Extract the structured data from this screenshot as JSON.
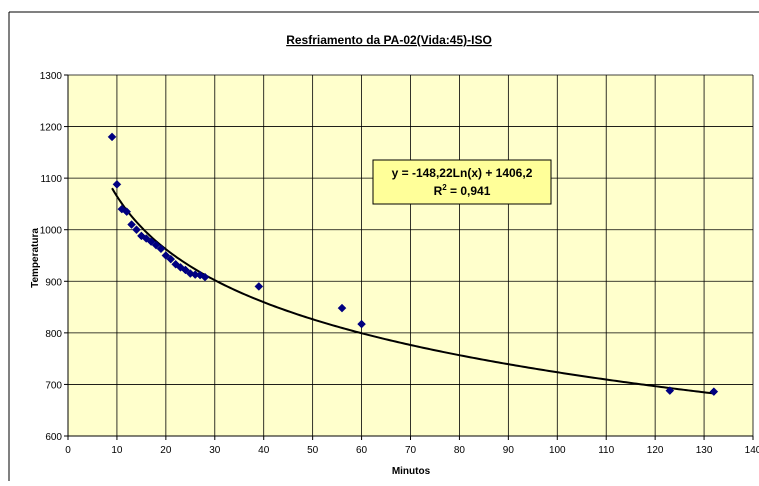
{
  "chart_data": {
    "type": "scatter",
    "title": "Resfriamento da PA-02(Vida:45)-ISO",
    "xlabel": "Minutos",
    "ylabel": "Temperatura",
    "xlim": [
      0,
      140
    ],
    "ylim": [
      600,
      1300
    ],
    "x_ticks": [
      0,
      10,
      20,
      30,
      40,
      50,
      60,
      70,
      80,
      90,
      100,
      110,
      120,
      130,
      140
    ],
    "y_ticks": [
      600,
      700,
      800,
      900,
      1000,
      1100,
      1200,
      1300
    ],
    "grid": true,
    "plot_background": "#ffffcc",
    "marker_color": "#000080",
    "trendline_color": "#000000",
    "series": [
      {
        "x": [
          9,
          10,
          11,
          12,
          13,
          14,
          15,
          16,
          17,
          18,
          19,
          20,
          21,
          22,
          23,
          24,
          25,
          26,
          27,
          28,
          39,
          56,
          60,
          123,
          132
        ],
        "y": [
          1180,
          1088,
          1040,
          1035,
          1010,
          1000,
          988,
          983,
          977,
          970,
          963,
          950,
          943,
          933,
          927,
          922,
          915,
          913,
          912,
          908,
          890,
          848,
          817,
          688,
          686
        ]
      }
    ],
    "trendline": {
      "equation": "y = -148,22Ln(x) + 1406,2",
      "r2_prefix": "R",
      "r2_sup": "2",
      "r2_value": " = 0,941",
      "a": -148.22,
      "b": 1406.2,
      "x_range": [
        9,
        132
      ]
    }
  }
}
